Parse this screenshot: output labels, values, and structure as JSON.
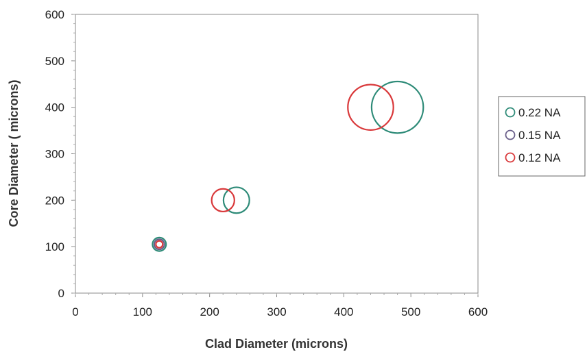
{
  "chart_data": {
    "type": "scatter",
    "xlabel": "Clad Diameter (microns)",
    "ylabel": "Core Diameter ( microns)",
    "xlim": [
      0,
      600
    ],
    "ylim": [
      0,
      600
    ],
    "xticks": [
      "0",
      "100",
      "200",
      "300",
      "400",
      "500",
      "600"
    ],
    "yticks": [
      "0",
      "100",
      "200",
      "300",
      "400",
      "500",
      "600"
    ],
    "grid": false,
    "legend_position": "right",
    "marker": "open-circle",
    "series": [
      {
        "name": "0.22 NA",
        "color": "#2e8b78",
        "points": [
          {
            "x": 125,
            "y": 105
          },
          {
            "x": 240,
            "y": 200
          },
          {
            "x": 480,
            "y": 400
          }
        ]
      },
      {
        "name": "0.15 NA",
        "color": "#6a5f8a",
        "points": [
          {
            "x": 125,
            "y": 105
          }
        ]
      },
      {
        "name": "0.12 NA",
        "color": "#d9383a",
        "points": [
          {
            "x": 125,
            "y": 105
          },
          {
            "x": 220,
            "y": 200
          },
          {
            "x": 440,
            "y": 400
          }
        ]
      }
    ]
  }
}
